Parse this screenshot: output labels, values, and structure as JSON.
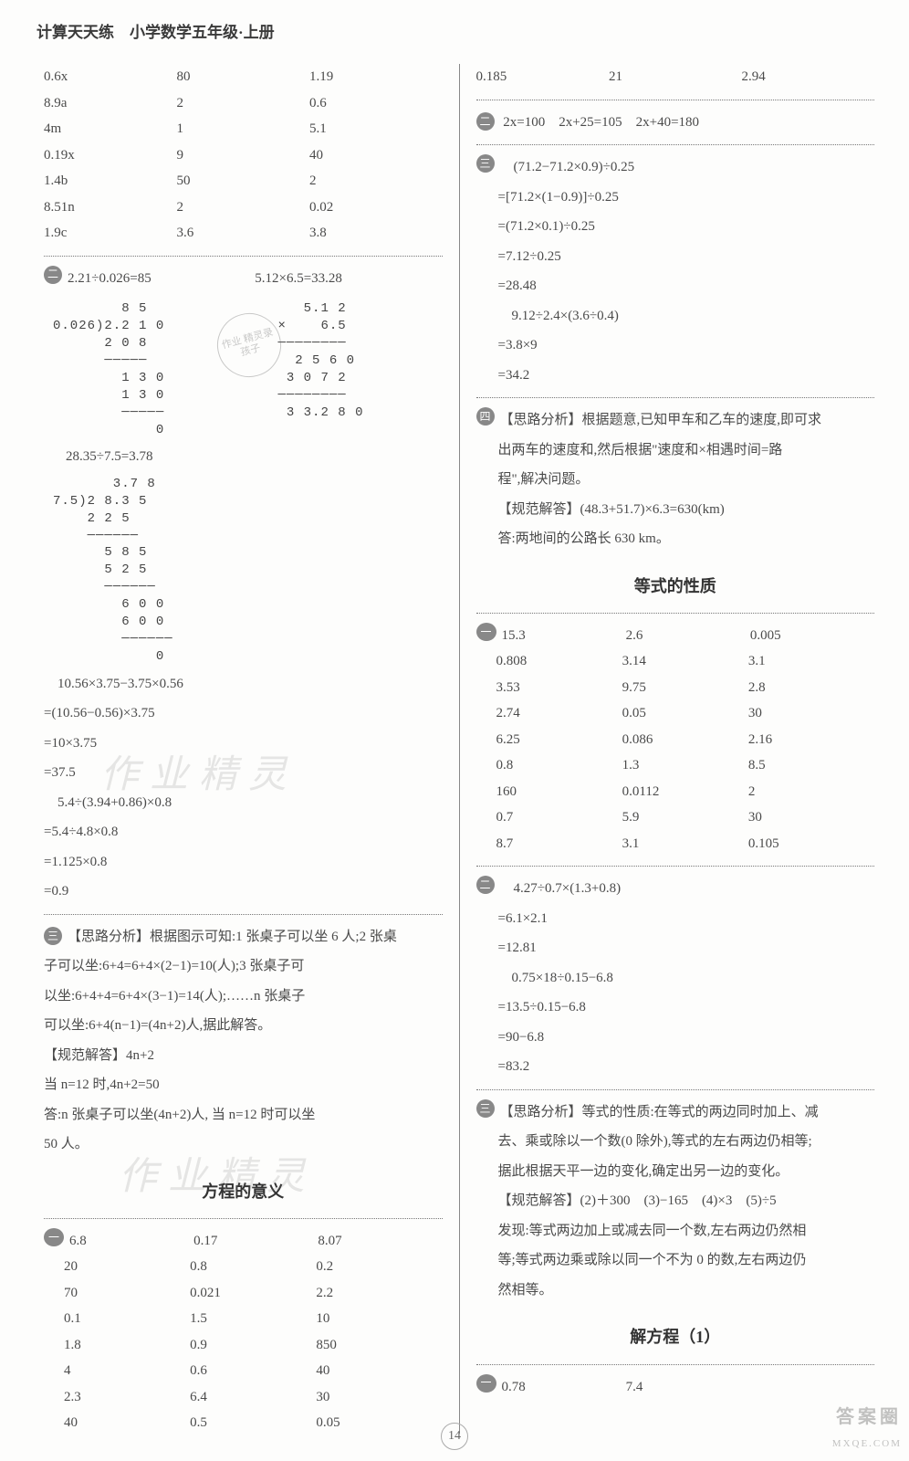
{
  "header_title": "计算天天练　小学数学五年级·上册",
  "page_number": "14",
  "watermark_text": "作业精灵",
  "corner_main": "答案圈",
  "corner_sub": "MXQE.COM",
  "stamp_text": "作业\n精灵录孩子",
  "left": {
    "table1": [
      [
        "0.6x",
        "80",
        "1.19"
      ],
      [
        "8.9a",
        "2",
        "0.6"
      ],
      [
        "4m",
        "1",
        "5.1"
      ],
      [
        "0.19x",
        "9",
        "40"
      ],
      [
        "1.4b",
        "50",
        "2"
      ],
      [
        "8.51n",
        "2",
        "0.02"
      ],
      [
        "1.9c",
        "3.6",
        "3.8"
      ]
    ],
    "b2_head_l": "2.21÷0.026=85",
    "b2_head_r": "5.12×6.5=33.28",
    "longdiv1": "        8 5\n0.026)2.2 1 0\n      2 0 8\n      ─────\n        1 3 0\n        1 3 0\n        ─────\n            0",
    "mult1": "      5.1 2\n   ×    6.5\n   ────────\n     2 5 6 0\n    3 0 7 2\n   ────────\n    3 3.2 8 0",
    "b2_line3": "28.35÷7.5=3.78",
    "longdiv2": "       3.7 8\n7.5)2 8.3 5\n    2 2 5\n    ──────\n      5 8 5\n      5 2 5\n      ──────\n        6 0 0\n        6 0 0\n        ──────\n            0",
    "b2_seq1": [
      "　10.56×3.75−3.75×0.56",
      "=(10.56−0.56)×3.75",
      "=10×3.75",
      "=37.5"
    ],
    "b2_seq2": [
      "　5.4÷(3.94+0.86)×0.8",
      "=5.4÷4.8×0.8",
      "=1.125×0.8",
      "=0.9"
    ],
    "b3_lines": [
      "【思路分析】根据图示可知:1 张桌子可以坐 6 人;2 张桌",
      "子可以坐:6+4=6+4×(2−1)=10(人);3 张桌子可",
      "以坐:6+4+4=6+4×(3−1)=14(人);……n 张桌子",
      "可以坐:6+4(n−1)=(4n+2)人,据此解答。",
      "【规范解答】4n+2",
      "当 n=12 时,4n+2=50",
      "答:n 张桌子可以坐(4n+2)人, 当 n=12 时可以坐",
      "50 人。"
    ],
    "section1_title": "方程的意义",
    "table2": [
      [
        "6.8",
        "0.17",
        "8.07"
      ],
      [
        "20",
        "0.8",
        "0.2"
      ],
      [
        "70",
        "0.021",
        "2.2"
      ],
      [
        "0.1",
        "1.5",
        "10"
      ],
      [
        "1.8",
        "0.9",
        "850"
      ],
      [
        "4",
        "0.6",
        "40"
      ],
      [
        "2.3",
        "6.4",
        "30"
      ],
      [
        "40",
        "0.5",
        "0.05"
      ]
    ]
  },
  "right": {
    "top_row": [
      "0.185",
      "21",
      "2.94"
    ],
    "b2_line": "2x=100　2x+25=105　2x+40=180",
    "b3_seq1": [
      "　(71.2−71.2×0.9)÷0.25",
      "=[71.2×(1−0.9)]÷0.25",
      "=(71.2×0.1)÷0.25",
      "=7.12÷0.25",
      "=28.48"
    ],
    "b3_seq2": [
      "　9.12÷2.4×(3.6÷0.4)",
      "=3.8×9",
      "=34.2"
    ],
    "b4_lines": [
      "【思路分析】根据题意,已知甲车和乙车的速度,即可求",
      "出两车的速度和,然后根据\"速度和×相遇时间=路",
      "程\",解决问题。",
      "【规范解答】(48.3+51.7)×6.3=630(km)",
      "答:两地间的公路长 630 km。"
    ],
    "section2_title": "等式的性质",
    "table3": [
      [
        "15.3",
        "2.6",
        "0.005"
      ],
      [
        "0.808",
        "3.14",
        "3.1"
      ],
      [
        "3.53",
        "9.75",
        "2.8"
      ],
      [
        "2.74",
        "0.05",
        "30"
      ],
      [
        "6.25",
        "0.086",
        "2.16"
      ],
      [
        "0.8",
        "1.3",
        "8.5"
      ],
      [
        "160",
        "0.0112",
        "2"
      ],
      [
        "0.7",
        "5.9",
        "30"
      ],
      [
        "8.7",
        "3.1",
        "0.105"
      ]
    ],
    "b6_seq1": [
      "　4.27÷0.7×(1.3+0.8)",
      "=6.1×2.1",
      "=12.81"
    ],
    "b6_seq2": [
      "　0.75×18÷0.15−6.8",
      "=13.5÷0.15−6.8",
      "=90−6.8",
      "=83.2"
    ],
    "b7_lines": [
      "【思路分析】等式的性质:在等式的两边同时加上、减",
      "去、乘或除以一个数(0 除外),等式的左右两边仍相等;",
      "据此根据天平一边的变化,确定出另一边的变化。",
      "【规范解答】(2)＋300　(3)−165　(4)×3　(5)÷5",
      "发现:等式两边加上或减去同一个数,左右两边仍然相",
      "等;等式两边乘或除以同一个不为 0 的数,左右两边仍",
      "然相等。"
    ],
    "section3_title": "解方程（1）",
    "last_row": [
      "0.78",
      "7.4",
      ""
    ]
  }
}
